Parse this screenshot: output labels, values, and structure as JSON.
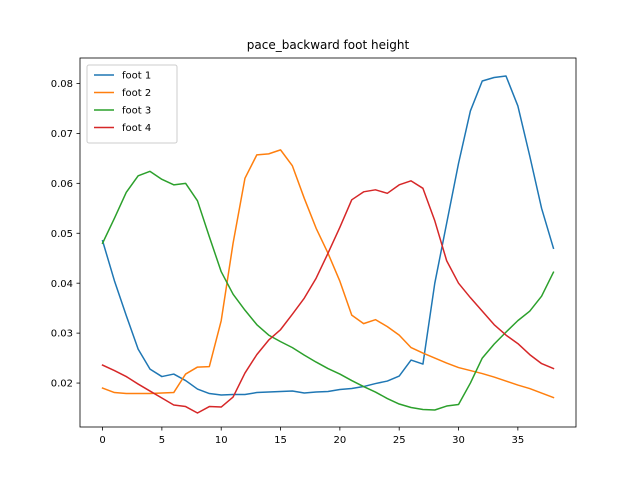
{
  "chart_data": {
    "type": "line",
    "title": "pace_backward foot height",
    "xlabel": "",
    "ylabel": "",
    "xlim": [
      -1.9,
      39.9
    ],
    "ylim": [
      0.0112,
      0.0851
    ],
    "xticks": [
      0,
      5,
      10,
      15,
      20,
      25,
      30,
      35
    ],
    "yticks": [
      0.02,
      0.03,
      0.04,
      0.05,
      0.06,
      0.07,
      0.08
    ],
    "xtick_labels": [
      "0",
      "5",
      "10",
      "15",
      "20",
      "25",
      "30",
      "35"
    ],
    "ytick_labels": [
      "0.02",
      "0.03",
      "0.04",
      "0.05",
      "0.06",
      "0.07",
      "0.08"
    ],
    "grid": false,
    "legend_position": "top-left",
    "x": [
      0,
      1,
      2,
      3,
      4,
      5,
      6,
      7,
      8,
      9,
      10,
      11,
      12,
      13,
      14,
      15,
      16,
      17,
      18,
      19,
      20,
      21,
      22,
      23,
      24,
      25,
      26,
      27,
      28,
      29,
      30,
      31,
      32,
      33,
      34,
      35,
      36,
      37,
      38
    ],
    "series": [
      {
        "name": "foot 1",
        "color": "#1f77b4",
        "values": [
          0.0485,
          0.0405,
          0.0335,
          0.0268,
          0.0228,
          0.0213,
          0.0218,
          0.0205,
          0.0188,
          0.0179,
          0.0176,
          0.0177,
          0.0177,
          0.0181,
          0.0182,
          0.0183,
          0.0184,
          0.018,
          0.0182,
          0.0183,
          0.0187,
          0.0189,
          0.0193,
          0.0199,
          0.0204,
          0.0214,
          0.0246,
          0.0238,
          0.04,
          0.052,
          0.064,
          0.0745,
          0.0805,
          0.0812,
          0.0815,
          0.0755,
          0.0655,
          0.055,
          0.047
        ]
      },
      {
        "name": "foot 2",
        "color": "#ff7f0e",
        "values": [
          0.019,
          0.0181,
          0.0179,
          0.0179,
          0.0179,
          0.018,
          0.0181,
          0.0218,
          0.0232,
          0.0233,
          0.0325,
          0.048,
          0.061,
          0.0657,
          0.0659,
          0.0667,
          0.0635,
          0.057,
          0.051,
          0.046,
          0.0404,
          0.0336,
          0.0319,
          0.0327,
          0.0313,
          0.0296,
          0.0271,
          0.026,
          0.025,
          0.024,
          0.0231,
          0.0225,
          0.0219,
          0.0212,
          0.0204,
          0.0196,
          0.0189,
          0.018,
          0.0171
        ]
      },
      {
        "name": "foot 3",
        "color": "#2ca02c",
        "values": [
          0.048,
          0.053,
          0.0582,
          0.0615,
          0.0624,
          0.0608,
          0.0597,
          0.06,
          0.0565,
          0.0493,
          0.0423,
          0.0378,
          0.0346,
          0.0317,
          0.0296,
          0.0283,
          0.0271,
          0.0256,
          0.0242,
          0.0229,
          0.0218,
          0.0205,
          0.0193,
          0.0182,
          0.0169,
          0.0158,
          0.0151,
          0.0147,
          0.0146,
          0.0154,
          0.0157,
          0.02,
          0.025,
          0.0278,
          0.0302,
          0.0325,
          0.0344,
          0.0374,
          0.0422
        ]
      },
      {
        "name": "foot 4",
        "color": "#d62728",
        "values": [
          0.0236,
          0.0225,
          0.0213,
          0.0198,
          0.0184,
          0.017,
          0.0156,
          0.0153,
          0.014,
          0.0153,
          0.0152,
          0.0172,
          0.022,
          0.0257,
          0.0286,
          0.0307,
          0.0338,
          0.037,
          0.041,
          0.046,
          0.0512,
          0.0567,
          0.0583,
          0.0587,
          0.058,
          0.0597,
          0.0605,
          0.059,
          0.0525,
          0.0445,
          0.04,
          0.0371,
          0.0344,
          0.0317,
          0.0296,
          0.0279,
          0.0257,
          0.0239,
          0.0229
        ]
      }
    ]
  }
}
